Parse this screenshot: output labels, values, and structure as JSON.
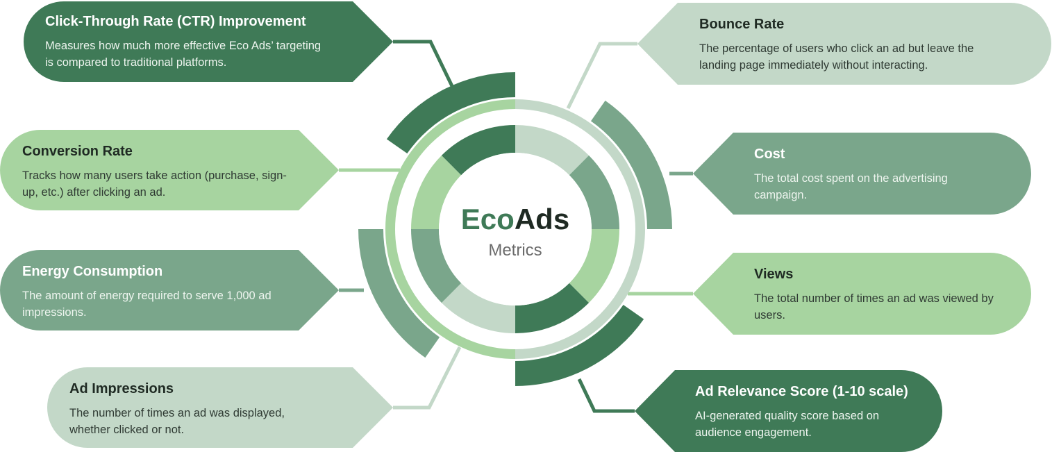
{
  "colors": {
    "dark": "#3f7a57",
    "medium": "#7aa68b",
    "light": "#a7d4a0",
    "pale": "#c3d8c8",
    "title_dark_text": "#1f2a23",
    "body_dark_text": "#2f3a33",
    "on_dark_title": "#ffffff",
    "on_dark_text": "#eef5ef"
  },
  "center": {
    "brand_part1": "Eco",
    "brand_part2": "Ads",
    "subtitle": "Metrics"
  },
  "metrics": [
    {
      "id": "ctr",
      "title": "Click-Through Rate (CTR) Improvement",
      "description": "Measures how much more effective Eco Ads’ targeting is compared to traditional platforms.",
      "tone": "dark"
    },
    {
      "id": "conversion",
      "title": "Conversion Rate",
      "description": "Tracks how many users take action (purchase, sign-up, etc.) after clicking an ad.",
      "tone": "light"
    },
    {
      "id": "energy",
      "title": "Energy Consumption",
      "description": "The amount of energy required to serve 1,000 ad impressions.",
      "tone": "medium"
    },
    {
      "id": "impressions",
      "title": "Ad Impressions",
      "description": "The number of times an ad was displayed, whether clicked or not.",
      "tone": "pale"
    },
    {
      "id": "bounce",
      "title": "Bounce Rate",
      "description": "The percentage of users who click an ad but leave the landing page immediately without interacting.",
      "tone": "pale"
    },
    {
      "id": "cost",
      "title": "Cost",
      "description": "The total cost spent on the advertising campaign.",
      "tone": "medium"
    },
    {
      "id": "views",
      "title": "Views",
      "description": "The total number of times an ad was viewed by users.",
      "tone": "light"
    },
    {
      "id": "relevance",
      "title": "Ad Relevance Score (1-10 scale)",
      "description": "AI-generated quality score based on audience engagement.",
      "tone": "dark"
    }
  ]
}
